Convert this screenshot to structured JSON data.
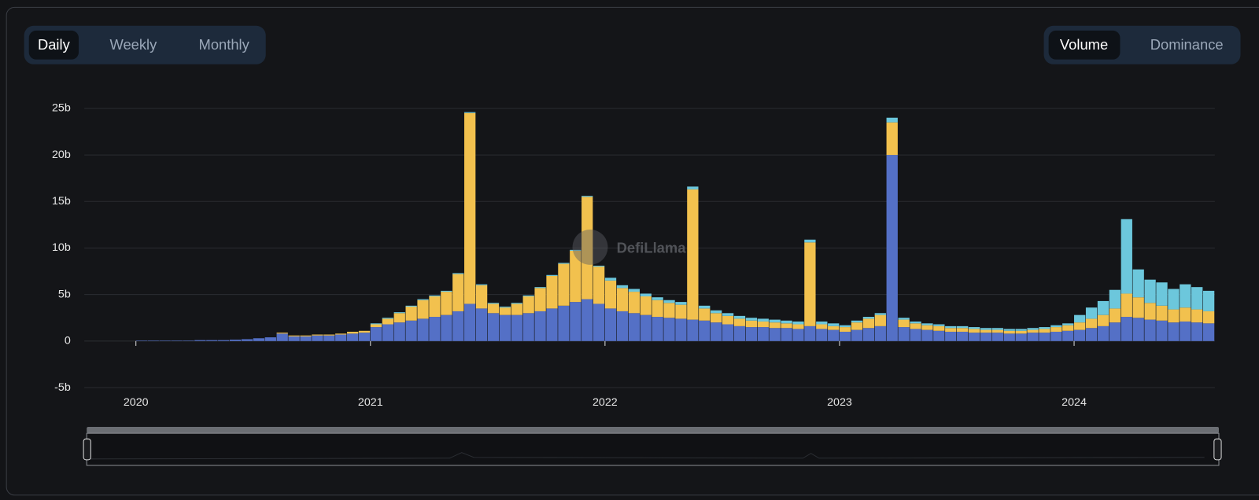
{
  "toggles": {
    "period": [
      "Daily",
      "Weekly",
      "Monthly"
    ],
    "view": [
      "Volume",
      "Dominance"
    ]
  },
  "chart_data": {
    "type": "bar",
    "stacked": true,
    "watermark": "DefiLlama",
    "grid": true,
    "xlim": [
      2019.78,
      2024.6
    ],
    "xticks": [
      2020,
      2021,
      2022,
      2023,
      2024
    ],
    "ylim": [
      -5,
      25
    ],
    "yticks": [
      {
        "value": -5,
        "label": "-5b"
      },
      0,
      {
        "value": 5,
        "label": "5b"
      },
      {
        "value": 10,
        "label": "10b"
      },
      {
        "value": 15,
        "label": "15b"
      },
      {
        "value": 20,
        "label": "20b"
      },
      {
        "value": 25,
        "label": "25b"
      }
    ],
    "x": [
      2020.0,
      2020.05,
      2020.1,
      2020.15,
      2020.2,
      2020.25,
      2020.3,
      2020.35,
      2020.4,
      2020.45,
      2020.5,
      2020.55,
      2020.6,
      2020.65,
      2020.7,
      2020.75,
      2020.8,
      2020.85,
      2020.9,
      2020.95,
      2021.0,
      2021.05,
      2021.1,
      2021.15,
      2021.2,
      2021.25,
      2021.3,
      2021.35,
      2021.4,
      2021.45,
      2021.5,
      2021.55,
      2021.6,
      2021.65,
      2021.7,
      2021.75,
      2021.8,
      2021.85,
      2021.9,
      2021.95,
      2022.0,
      2022.05,
      2022.1,
      2022.15,
      2022.2,
      2022.25,
      2022.3,
      2022.35,
      2022.4,
      2022.45,
      2022.5,
      2022.55,
      2022.6,
      2022.65,
      2022.7,
      2022.75,
      2022.8,
      2022.85,
      2022.9,
      2022.95,
      2023.0,
      2023.05,
      2023.1,
      2023.15,
      2023.2,
      2023.25,
      2023.3,
      2023.35,
      2023.4,
      2023.45,
      2023.5,
      2023.55,
      2023.6,
      2023.65,
      2023.7,
      2023.75,
      2023.8,
      2023.85,
      2023.9,
      2023.95,
      2024.0,
      2024.05,
      2024.1,
      2024.15,
      2024.2,
      2024.25,
      2024.3,
      2024.35,
      2024.4,
      2024.45,
      2024.5,
      2024.55
    ],
    "series": [
      {
        "color": "#5470c6",
        "values": [
          0.05,
          0.05,
          0.05,
          0.05,
          0.05,
          0.1,
          0.1,
          0.1,
          0.15,
          0.2,
          0.3,
          0.4,
          0.8,
          0.5,
          0.5,
          0.6,
          0.6,
          0.7,
          0.8,
          0.9,
          1.5,
          1.8,
          2.0,
          2.2,
          2.4,
          2.6,
          2.8,
          3.2,
          4.0,
          3.5,
          3.0,
          2.8,
          2.8,
          3.0,
          3.2,
          3.5,
          3.8,
          4.2,
          4.5,
          4.0,
          3.5,
          3.2,
          3.0,
          2.8,
          2.6,
          2.5,
          2.4,
          2.3,
          2.2,
          2.0,
          1.8,
          1.6,
          1.5,
          1.5,
          1.4,
          1.4,
          1.3,
          1.6,
          1.3,
          1.2,
          1.0,
          1.2,
          1.4,
          1.6,
          20.0,
          1.5,
          1.3,
          1.2,
          1.1,
          1.0,
          1.0,
          0.9,
          0.9,
          0.9,
          0.8,
          0.8,
          0.9,
          0.9,
          1.0,
          1.1,
          1.2,
          1.4,
          1.6,
          2.0,
          2.6,
          2.5,
          2.3,
          2.2,
          2.0,
          2.1,
          2.0,
          1.9
        ]
      },
      {
        "color": "#f2c14e",
        "values": [
          0,
          0,
          0,
          0,
          0,
          0,
          0,
          0,
          0,
          0,
          0,
          0,
          0.1,
          0.1,
          0.1,
          0.1,
          0.1,
          0.1,
          0.2,
          0.2,
          0.3,
          0.6,
          1.0,
          1.5,
          2.0,
          2.2,
          2.5,
          4.0,
          20.5,
          2.5,
          1.0,
          0.8,
          1.2,
          1.8,
          2.5,
          3.5,
          4.5,
          5.5,
          11.0,
          4.0,
          3.0,
          2.5,
          2.3,
          2.0,
          1.8,
          1.6,
          1.5,
          14.0,
          1.3,
          1.0,
          0.9,
          0.8,
          0.7,
          0.6,
          0.6,
          0.5,
          0.5,
          9.0,
          0.5,
          0.4,
          0.5,
          0.8,
          1.0,
          1.2,
          3.5,
          0.8,
          0.6,
          0.5,
          0.5,
          0.4,
          0.4,
          0.4,
          0.3,
          0.3,
          0.3,
          0.3,
          0.3,
          0.4,
          0.5,
          0.6,
          0.8,
          1.0,
          1.2,
          1.5,
          2.5,
          2.2,
          1.8,
          1.6,
          1.4,
          1.5,
          1.4,
          1.3
        ]
      },
      {
        "color": "#6cc7dc",
        "values": [
          0,
          0,
          0,
          0,
          0,
          0,
          0,
          0,
          0,
          0,
          0,
          0,
          0,
          0,
          0,
          0,
          0,
          0,
          0,
          0,
          0.1,
          0.1,
          0.1,
          0.1,
          0.1,
          0.1,
          0.1,
          0.1,
          0.1,
          0.1,
          0.1,
          0.1,
          0.1,
          0.1,
          0.1,
          0.1,
          0.1,
          0.1,
          0.1,
          0.1,
          0.3,
          0.3,
          0.3,
          0.3,
          0.3,
          0.3,
          0.3,
          0.3,
          0.3,
          0.3,
          0.3,
          0.3,
          0.3,
          0.3,
          0.3,
          0.3,
          0.3,
          0.3,
          0.3,
          0.3,
          0.2,
          0.2,
          0.2,
          0.2,
          0.5,
          0.2,
          0.2,
          0.2,
          0.2,
          0.2,
          0.2,
          0.2,
          0.2,
          0.2,
          0.2,
          0.2,
          0.2,
          0.2,
          0.2,
          0.2,
          0.8,
          1.2,
          1.5,
          2.0,
          8.0,
          3.0,
          2.5,
          2.5,
          2.2,
          2.5,
          2.4,
          2.2
        ]
      }
    ]
  }
}
